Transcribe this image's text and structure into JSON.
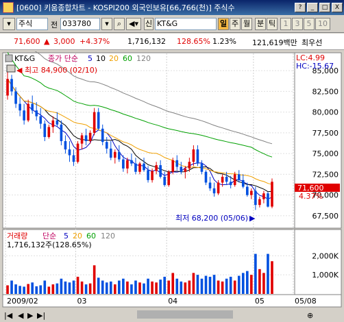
{
  "window": {
    "title": "[0600] 키움종합차트 - KOSPI200 외국인보유[66,766(천)] 주식수",
    "buttons": [
      "?",
      "_",
      "□",
      "X"
    ]
  },
  "toolbar": {
    "market_label": "주식",
    "prev_label": "전",
    "code_value": "033780",
    "stock_name": "KT&G",
    "credit_label": "신",
    "period_buttons": [
      "일",
      "주",
      "월",
      "분",
      "틱"
    ],
    "active_period": "일",
    "interval_buttons": [
      "1",
      "3",
      "5",
      "10"
    ]
  },
  "quote": {
    "price": "71,600",
    "change": "3,000",
    "change_pct": "+4.37%",
    "volume": "1,716,132",
    "volume_ratio": "128.65%",
    "turnover": "1.23%",
    "amount": "121,619백만",
    "extra": "최우선"
  },
  "legend": {
    "name": "KT&G",
    "price_label": "종가 단순",
    "ma": [
      "5",
      "10",
      "20",
      "60",
      "120"
    ],
    "ma_colors": [
      "#0000c0",
      "#000000",
      "#f0a000",
      "#00a000",
      "#808080"
    ]
  },
  "annotations": {
    "high": "최고 84,900 (02/10)",
    "low": "최저 68,200 (05/06)",
    "lc": "LC:4.99",
    "hc": "HC:-15.67",
    "last_price": "71,600",
    "last_pct": "4.37%"
  },
  "volume_panel": {
    "label": "거래량",
    "simple_label": "단순",
    "ma": [
      "5",
      "20",
      "60",
      "120"
    ],
    "current": "1,716,132주(128.65%)"
  },
  "colors": {
    "up": "#e00000",
    "down": "#0050e0",
    "bg": "#ffffff"
  },
  "chart_data": {
    "type": "candlestick",
    "price_ticks": [
      "85,000",
      "82,500",
      "80,000",
      "77,500",
      "75,000",
      "72,500",
      "70,000",
      "67,500"
    ],
    "price_tick_values": [
      85000,
      82500,
      80000,
      77500,
      75000,
      72500,
      70000,
      67500
    ],
    "ylim": [
      66500,
      86500
    ],
    "volume_ticks": [
      "2,000K",
      "1,000K"
    ],
    "volume_tick_values": [
      2000000,
      1000000
    ],
    "vol_ylim": [
      0,
      2300000
    ],
    "x_labels": [
      "2009/02",
      "03",
      "04",
      "05",
      "05/08"
    ],
    "x_label_index": [
      0,
      17,
      39,
      60,
      70
    ],
    "candles": [
      [
        82000,
        84900,
        81500,
        84000
      ],
      [
        84000,
        84500,
        82000,
        82500
      ],
      [
        82500,
        83000,
        80500,
        81000
      ],
      [
        81000,
        81800,
        79500,
        80200
      ],
      [
        80200,
        81000,
        78500,
        79000
      ],
      [
        79000,
        81500,
        78800,
        81000
      ],
      [
        81000,
        82000,
        79800,
        80200
      ],
      [
        80200,
        81200,
        79000,
        79500
      ],
      [
        79500,
        80500,
        78000,
        78600
      ],
      [
        78600,
        79000,
        76500,
        77000
      ],
      [
        77000,
        78500,
        76800,
        78200
      ],
      [
        78200,
        79500,
        77500,
        79000
      ],
      [
        79000,
        80000,
        78200,
        78500
      ],
      [
        78500,
        79000,
        76000,
        76500
      ],
      [
        76500,
        77200,
        75000,
        75500
      ],
      [
        75500,
        76500,
        74000,
        74800
      ],
      [
        74800,
        75500,
        73500,
        74000
      ],
      [
        74000,
        76500,
        73800,
        76200
      ],
      [
        76200,
        77500,
        75500,
        77200
      ],
      [
        77200,
        78000,
        76000,
        76500
      ],
      [
        76500,
        77800,
        76200,
        77500
      ],
      [
        77500,
        80500,
        77200,
        80000
      ],
      [
        80000,
        80500,
        77800,
        78000
      ],
      [
        78000,
        78500,
        76000,
        76400
      ],
      [
        76400,
        77000,
        75000,
        75600
      ],
      [
        75600,
        76500,
        74200,
        74500
      ],
      [
        74500,
        75500,
        73800,
        75200
      ],
      [
        75200,
        76000,
        74000,
        74300
      ],
      [
        74300,
        74800,
        72800,
        73200
      ],
      [
        73200,
        74500,
        72600,
        74200
      ],
      [
        74200,
        75000,
        73500,
        73800
      ],
      [
        73800,
        74500,
        72500,
        72800
      ],
      [
        72800,
        74000,
        72500,
        73800
      ],
      [
        73800,
        74500,
        72800,
        73000
      ],
      [
        73000,
        73500,
        71500,
        71800
      ],
      [
        71800,
        73200,
        71500,
        72900
      ],
      [
        72900,
        74000,
        72500,
        73600
      ],
      [
        73600,
        74200,
        72000,
        72200
      ],
      [
        72200,
        72800,
        71000,
        71200
      ],
      [
        71200,
        73000,
        71000,
        72800
      ],
      [
        72800,
        74500,
        72500,
        74200
      ],
      [
        74200,
        74800,
        73000,
        73400
      ],
      [
        73400,
        74000,
        72500,
        72800
      ],
      [
        72800,
        73500,
        72000,
        73200
      ],
      [
        73200,
        74500,
        72800,
        74000
      ],
      [
        74000,
        76000,
        73500,
        75500
      ],
      [
        75500,
        76000,
        73500,
        73800
      ],
      [
        73800,
        74200,
        72500,
        72800
      ],
      [
        72800,
        73000,
        71200,
        71500
      ],
      [
        71500,
        72200,
        70500,
        70800
      ],
      [
        70800,
        71500,
        69800,
        70200
      ],
      [
        70200,
        71800,
        70000,
        71500
      ],
      [
        71500,
        72500,
        71000,
        72200
      ],
      [
        72200,
        72800,
        71200,
        71600
      ],
      [
        71600,
        72300,
        70800,
        71200
      ],
      [
        71200,
        72800,
        71000,
        72500
      ],
      [
        72500,
        73000,
        71500,
        71800
      ],
      [
        71800,
        72500,
        70800,
        71000
      ],
      [
        71000,
        71500,
        69800,
        70000
      ],
      [
        70000,
        70800,
        69500,
        70500
      ],
      [
        70500,
        71000,
        68200,
        68800
      ],
      [
        68800,
        69800,
        68500,
        69500
      ],
      [
        69500,
        70500,
        69000,
        70200
      ],
      [
        70200,
        70400,
        68500,
        68600
      ],
      [
        68600,
        72000,
        68400,
        71600
      ]
    ],
    "volumes": [
      450,
      700,
      500,
      420,
      380,
      520,
      600,
      400,
      450,
      700,
      380,
      500,
      550,
      800,
      650,
      600,
      700,
      900,
      650,
      500,
      550,
      1500,
      850,
      700,
      600,
      650,
      500,
      700,
      800,
      650,
      500,
      700,
      600,
      550,
      800,
      650,
      600,
      750,
      900,
      700,
      1100,
      800,
      650,
      600,
      700,
      1100,
      1000,
      800,
      950,
      900,
      1000,
      700,
      650,
      800,
      900,
      700,
      950,
      1100,
      1200,
      1000,
      2100,
      1300,
      1100,
      2100,
      1716
    ]
  }
}
